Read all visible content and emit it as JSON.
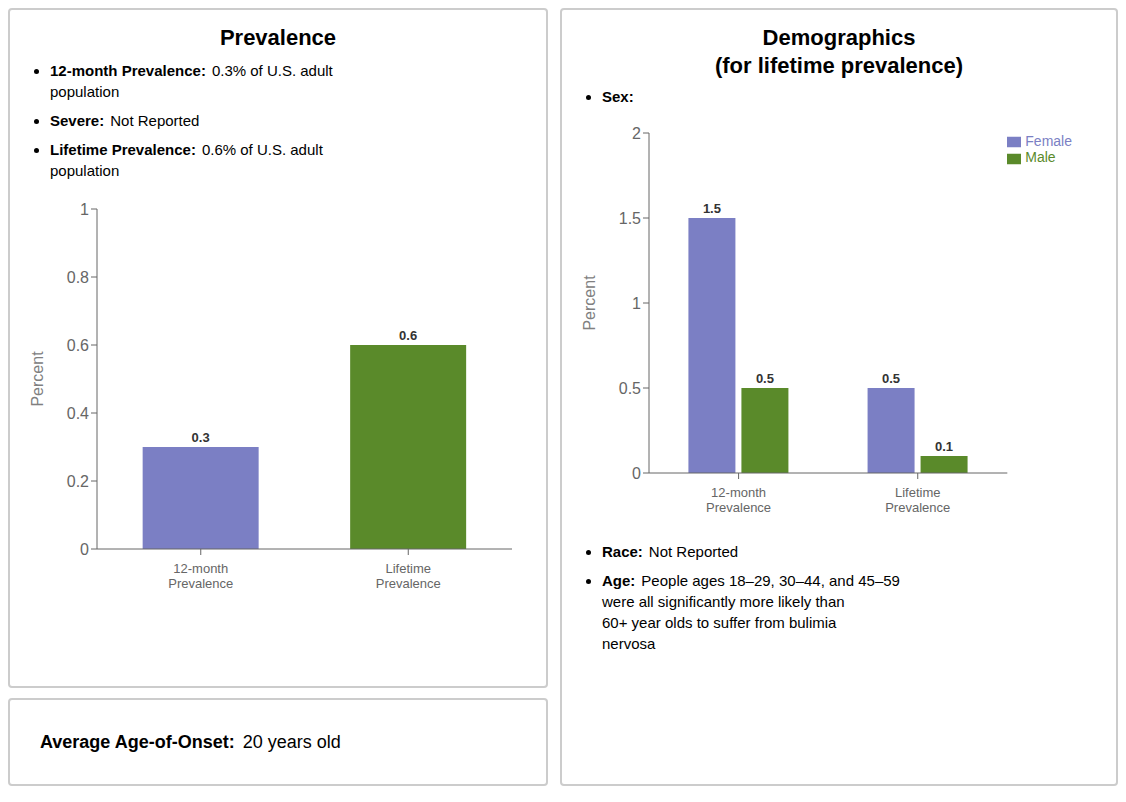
{
  "chart_data": [
    {
      "type": "bar",
      "title": "Prevalence",
      "annotations": [
        {
          "label": "12-month Prevalence:",
          "text": "0.3% of U.S. adult\npopulation"
        },
        {
          "label": "Severe:",
          "text": "Not Reported"
        },
        {
          "label": "Lifetime Prevalence:",
          "text": "0.6% of U.S. adult\npopulation"
        }
      ],
      "footer": {
        "label": "Average Age-of-Onset:",
        "text": "20 years old"
      },
      "categories": [
        "12-month\nPrevalence",
        "Lifetime\nPrevalence"
      ],
      "values": [
        0.3,
        0.6
      ],
      "colors": [
        "#7b7fc4",
        "#5a8a2a"
      ],
      "ylabel": "Percent",
      "ylim": [
        0,
        1.0
      ],
      "yticks": [
        0,
        0.2,
        0.4,
        0.6,
        0.8,
        1.0
      ],
      "grid": false,
      "data_labels": true
    },
    {
      "type": "bar",
      "title": "Demographics\n(for lifetime prevalence)",
      "subtitle": "Sex:",
      "annotations": [
        {
          "label": "Race:",
          "text": "Not Reported"
        },
        {
          "label": "Age:",
          "text": "People ages 18–29, 30–44, and 45–59\nwere all significantly more likely than\n60+ year olds to suffer from bulimia\nnervosa"
        }
      ],
      "categories": [
        "12-month\nPrevalence",
        "Lifetime\nPrevalence"
      ],
      "series": [
        {
          "name": "Female",
          "color": "#7b7fc4",
          "values": [
            1.5,
            0.5
          ]
        },
        {
          "name": "Male",
          "color": "#5a8a2a",
          "values": [
            0.5,
            0.1
          ]
        }
      ],
      "ylabel": "Percent",
      "ylim": [
        0,
        2.0
      ],
      "yticks": [
        0,
        0.5,
        1.0,
        1.5,
        2.0
      ],
      "legend": "upper right",
      "grid": false,
      "data_labels": true
    }
  ]
}
